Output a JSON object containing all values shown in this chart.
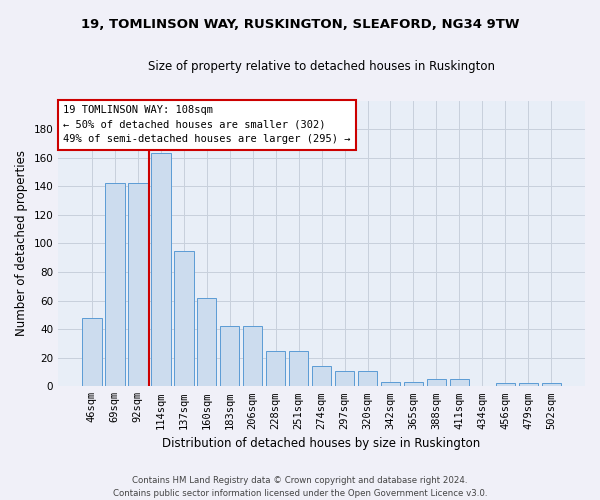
{
  "title1": "19, TOMLINSON WAY, RUSKINGTON, SLEAFORD, NG34 9TW",
  "title2": "Size of property relative to detached houses in Ruskington",
  "xlabel": "Distribution of detached houses by size in Ruskington",
  "ylabel": "Number of detached properties",
  "categories": [
    "46sqm",
    "69sqm",
    "92sqm",
    "114sqm",
    "137sqm",
    "160sqm",
    "183sqm",
    "206sqm",
    "228sqm",
    "251sqm",
    "274sqm",
    "297sqm",
    "320sqm",
    "342sqm",
    "365sqm",
    "388sqm",
    "411sqm",
    "434sqm",
    "456sqm",
    "479sqm",
    "502sqm"
  ],
  "values": [
    48,
    142,
    142,
    163,
    95,
    62,
    42,
    42,
    25,
    25,
    14,
    11,
    11,
    3,
    3,
    5,
    5,
    0,
    2,
    2,
    2
  ],
  "bar_color": "#ccdcee",
  "bar_edge_color": "#5b9bd5",
  "vline_x": 2.5,
  "vline_color": "#cc0000",
  "annotation_line1": "19 TOMLINSON WAY: 108sqm",
  "annotation_line2": "← 50% of detached houses are smaller (302)",
  "annotation_line3": "49% of semi-detached houses are larger (295) →",
  "annotation_box_color": "#ffffff",
  "annotation_box_edge": "#cc0000",
  "footer1": "Contains HM Land Registry data © Crown copyright and database right 2024.",
  "footer2": "Contains public sector information licensed under the Open Government Licence v3.0.",
  "ylim": [
    0,
    200
  ],
  "yticks": [
    0,
    20,
    40,
    60,
    80,
    100,
    120,
    140,
    160,
    180
  ],
  "grid_color": "#c8d0dc",
  "bg_color": "#e8eef7",
  "fig_bg_color": "#f0f0f8"
}
